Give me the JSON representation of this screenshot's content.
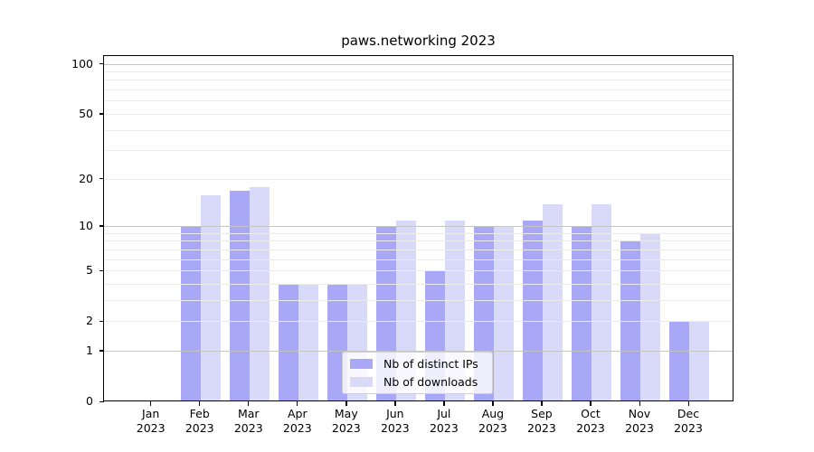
{
  "title": "paws.networking 2023",
  "chart_data": {
    "type": "bar",
    "title": "paws.networking 2023",
    "categories": [
      "Jan 2023",
      "Feb 2023",
      "Mar 2023",
      "Apr 2023",
      "May 2023",
      "Jun 2023",
      "Jul 2023",
      "Aug 2023",
      "Sep 2023",
      "Oct 2023",
      "Nov 2023",
      "Dec 2023"
    ],
    "series": [
      {
        "name": "Nb of distinct IPs",
        "color": "#a8a8f6",
        "values": [
          0,
          10,
          17,
          4,
          4,
          10,
          5,
          10,
          11,
          10,
          8,
          2
        ]
      },
      {
        "name": "Nb of downloads",
        "color": "#d9d9f9",
        "values": [
          0,
          16,
          18,
          4,
          4,
          11,
          11,
          10,
          14,
          14,
          9,
          2
        ]
      }
    ],
    "yscale": "log1p",
    "ylim": [
      0,
      113
    ],
    "yticks": [
      0,
      1,
      2,
      5,
      10,
      20,
      50,
      100
    ],
    "grid": {
      "major_values": [
        1,
        10,
        100
      ],
      "minor_values": [
        2,
        3,
        4,
        5,
        6,
        7,
        8,
        9,
        20,
        30,
        40,
        50,
        60,
        70,
        80,
        90
      ],
      "major_color": "#c5c5c5",
      "minor_color": "#ebebeb"
    },
    "legend": {
      "position": "lower center",
      "items": [
        "Nb of distinct IPs",
        "Nb of downloads"
      ]
    }
  }
}
